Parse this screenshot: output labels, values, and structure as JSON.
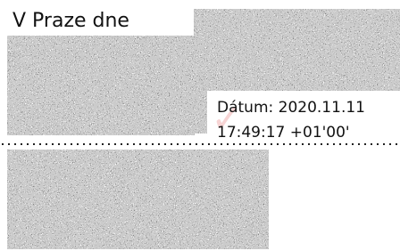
{
  "document": {
    "place_date_label": "V Praze dne",
    "signature": {
      "date_line": "Dátum: 2020.11.11",
      "time_line": "17:49:17 +01'00'"
    }
  }
}
